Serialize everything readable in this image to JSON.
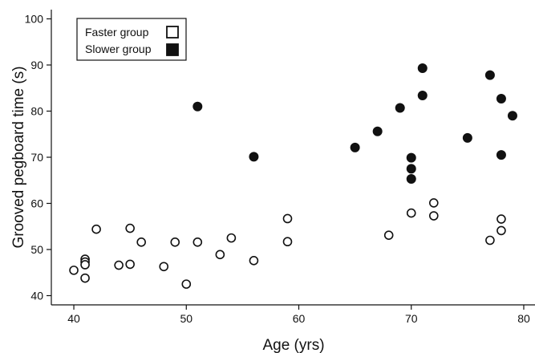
{
  "chart_data": {
    "type": "scatter",
    "xlabel": "Age (yrs)",
    "ylabel": "Grooved pegboard time (s)",
    "xlim": [
      38,
      81
    ],
    "ylim": [
      38,
      102
    ],
    "xticks": [
      40,
      50,
      60,
      70,
      80
    ],
    "yticks": [
      40,
      50,
      60,
      70,
      80,
      90,
      100
    ],
    "grid": false,
    "legend_position": "top-left",
    "series": [
      {
        "name": "Faster group",
        "marker": "open-circle",
        "color": "#111111",
        "points": [
          [
            40,
            45.5
          ],
          [
            41,
            47.9
          ],
          [
            41,
            47.3
          ],
          [
            41,
            46.7
          ],
          [
            41,
            43.8
          ],
          [
            42,
            54.4
          ],
          [
            44,
            46.6
          ],
          [
            45,
            54.6
          ],
          [
            45,
            46.8
          ],
          [
            46,
            51.6
          ],
          [
            48,
            46.3
          ],
          [
            49,
            51.6
          ],
          [
            50,
            42.5
          ],
          [
            51,
            51.6
          ],
          [
            53,
            48.9
          ],
          [
            54,
            52.5
          ],
          [
            56,
            47.6
          ],
          [
            59,
            56.7
          ],
          [
            59,
            51.7
          ],
          [
            68,
            53.1
          ],
          [
            70,
            57.9
          ],
          [
            72,
            60.1
          ],
          [
            72,
            57.3
          ],
          [
            77,
            52.0
          ],
          [
            78,
            56.6
          ],
          [
            78,
            54.1
          ]
        ]
      },
      {
        "name": "Slower group",
        "marker": "filled-circle",
        "color": "#111111",
        "points": [
          [
            51,
            81.0
          ],
          [
            56,
            70.1
          ],
          [
            65,
            72.1
          ],
          [
            67,
            75.6
          ],
          [
            69,
            80.7
          ],
          [
            70,
            69.9
          ],
          [
            70,
            67.5
          ],
          [
            70,
            65.3
          ],
          [
            71,
            89.3
          ],
          [
            71,
            83.4
          ],
          [
            75,
            74.2
          ],
          [
            77,
            87.8
          ],
          [
            78,
            82.7
          ],
          [
            78,
            70.5
          ],
          [
            79,
            79.0
          ]
        ]
      }
    ]
  }
}
